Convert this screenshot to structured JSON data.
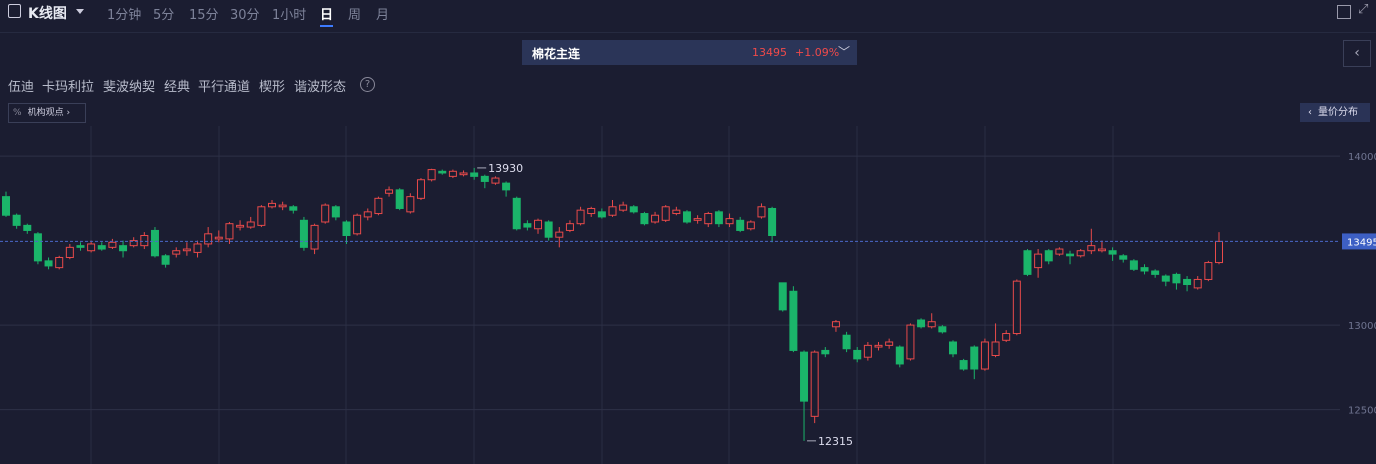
{
  "ui": {
    "toolbar": {
      "title": "K线图",
      "periods": [
        "1分钟",
        "5分",
        "15分",
        "30分",
        "1小时",
        "日",
        "周",
        "月"
      ]
    },
    "product": {
      "name": "棉花主连",
      "change": "+1.09%"
    },
    "tools": [
      "伍迪",
      "卡玛利拉",
      "斐波纳契",
      "经典",
      "平行通道",
      "楔形",
      "谐波形态"
    ],
    "views": "机构观点",
    "volume_profile": "量价分布"
  },
  "chart_data": {
    "type": "candlestick",
    "open": [
      13760,
      13650,
      13590,
      13540,
      13380,
      13340,
      13400,
      13470,
      13440,
      13470,
      13460,
      13470,
      13470,
      13470,
      13560,
      13410,
      13420,
      13440,
      13430,
      13480,
      13510,
      13510,
      13580,
      13580,
      13590,
      13700,
      13700,
      13700,
      13620,
      13450,
      13610,
      13700,
      13610,
      13540,
      13640,
      13660,
      13780,
      13800,
      13670,
      13750,
      13860,
      13910,
      13880,
      13890,
      13900,
      13880,
      13840,
      13840,
      13750,
      13600,
      13570,
      13610,
      13520,
      13560,
      13600,
      13660,
      13670,
      13650,
      13680,
      13700,
      13660,
      13610,
      13620,
      13660,
      13670,
      13620,
      13600,
      13670,
      13600,
      13620,
      13570,
      13640,
      13690,
      13250,
      13200,
      12840,
      12460,
      12850,
      12990,
      12940,
      12850,
      12810,
      12870,
      12880,
      12870,
      12800,
      13030,
      12990,
      12990,
      12900,
      12790,
      12870,
      12740,
      12820,
      12910,
      12950,
      13440,
      13340,
      13440,
      13420,
      13420,
      13410,
      13440,
      13440,
      13440,
      13410,
      13380,
      13340,
      13320,
      13290,
      13300,
      13270,
      13220,
      13270,
      13370
    ],
    "high": [
      13790,
      13660,
      13600,
      13550,
      13400,
      13410,
      13480,
      13490,
      13500,
      13490,
      13510,
      13500,
      13520,
      13550,
      13580,
      13420,
      13460,
      13490,
      13500,
      13580,
      13560,
      13610,
      13620,
      13640,
      13710,
      13740,
      13730,
      13710,
      13640,
      13600,
      13720,
      13710,
      13620,
      13660,
      13690,
      13760,
      13820,
      13810,
      13780,
      13870,
      13925,
      13920,
      13920,
      13915,
      13930,
      13890,
      13880,
      13850,
      13760,
      13620,
      13630,
      13620,
      13580,
      13620,
      13700,
      13700,
      13690,
      13740,
      13730,
      13710,
      13670,
      13670,
      13710,
      13700,
      13680,
      13650,
      13670,
      13680,
      13660,
      13640,
      13620,
      13720,
      13700,
      13250,
      13230,
      12850,
      12850,
      12870,
      13030,
      12960,
      12870,
      12900,
      12900,
      12920,
      12880,
      13010,
      13040,
      13070,
      13000,
      12910,
      12800,
      12880,
      12920,
      13010,
      12970,
      13270,
      13450,
      13450,
      13450,
      13460,
      13440,
      13450,
      13570,
      13500,
      13460,
      13420,
      13390,
      13360,
      13330,
      13300,
      13310,
      13290,
      13290,
      13380,
      13550
    ],
    "low": [
      13640,
      13570,
      13540,
      13360,
      13330,
      13330,
      13390,
      13440,
      13430,
      13440,
      13450,
      13400,
      13460,
      13450,
      13400,
      13340,
      13400,
      13410,
      13400,
      13460,
      13490,
      13480,
      13560,
      13570,
      13580,
      13690,
      13680,
      13660,
      13440,
      13420,
      13600,
      13620,
      13480,
      13530,
      13620,
      13650,
      13760,
      13680,
      13660,
      13740,
      13850,
      13890,
      13870,
      13880,
      13860,
      13810,
      13830,
      13760,
      13560,
      13560,
      13540,
      13500,
      13460,
      13550,
      13590,
      13640,
      13630,
      13640,
      13670,
      13660,
      13590,
      13600,
      13610,
      13650,
      13600,
      13600,
      13580,
      13580,
      13580,
      13550,
      13560,
      13630,
      13490,
      13080,
      12840,
      12315,
      12420,
      12810,
      12960,
      12840,
      12780,
      12790,
      12850,
      12860,
      12750,
      12790,
      12980,
      12980,
      12950,
      12810,
      12730,
      12680,
      12730,
      12810,
      12900,
      12940,
      13290,
      13280,
      13360,
      13410,
      13360,
      13400,
      13420,
      13430,
      13380,
      13370,
      13320,
      13300,
      13280,
      13230,
      13210,
      13200,
      13210,
      13260,
      13360
    ],
    "close": [
      13650,
      13590,
      13560,
      13380,
      13350,
      13400,
      13460,
      13460,
      13480,
      13450,
      13490,
      13440,
      13500,
      13530,
      13410,
      13360,
      13440,
      13450,
      13480,
      13540,
      13520,
      13600,
      13590,
      13610,
      13700,
      13720,
      13710,
      13680,
      13460,
      13590,
      13710,
      13640,
      13530,
      13650,
      13670,
      13750,
      13800,
      13690,
      13760,
      13860,
      13920,
      13900,
      13910,
      13900,
      13880,
      13850,
      13870,
      13800,
      13570,
      13580,
      13620,
      13520,
      13550,
      13600,
      13680,
      13690,
      13640,
      13700,
      13710,
      13670,
      13600,
      13650,
      13700,
      13680,
      13610,
      13630,
      13660,
      13600,
      13630,
      13560,
      13610,
      13700,
      13530,
      13090,
      12850,
      12550,
      12840,
      12830,
      13020,
      12860,
      12800,
      12880,
      12880,
      12900,
      12770,
      13000,
      12990,
      13020,
      12960,
      12830,
      12740,
      12740,
      12900,
      12900,
      12950,
      13260,
      13300,
      13420,
      13380,
      13450,
      13410,
      13440,
      13470,
      13450,
      13420,
      13390,
      13330,
      13320,
      13300,
      13260,
      13250,
      13240,
      13270,
      13370,
      13495
    ],
    "ylim": [
      12178,
      14178
    ],
    "yticks": [
      12500,
      13000,
      14000
    ],
    "up_color": "#e84a4a",
    "down_color": "#1bb56a"
  }
}
